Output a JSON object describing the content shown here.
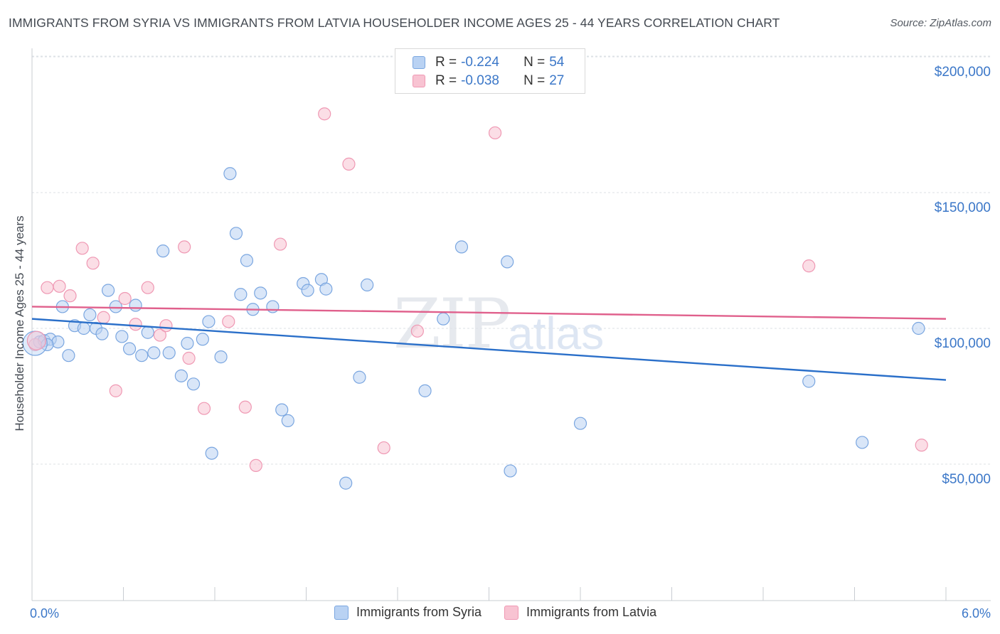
{
  "title": "IMMIGRANTS FROM SYRIA VS IMMIGRANTS FROM LATVIA HOUSEHOLDER INCOME AGES 25 - 44 YEARS CORRELATION CHART",
  "source": "Source: ZipAtlas.com",
  "watermark": {
    "zip": "ZIP",
    "atlas": "atlas"
  },
  "legend": {
    "rows": [
      {
        "r_label": "R =",
        "r_value": "-0.224",
        "n_label": "N =",
        "n_value": "54"
      },
      {
        "r_label": "R =",
        "r_value": "-0.038",
        "n_label": "N =",
        "n_value": "27"
      }
    ]
  },
  "bottom_legend": {
    "syria": "Immigrants from Syria",
    "latvia": "Immigrants from Latvia"
  },
  "colors": {
    "syria_fill": "#b9d2f3",
    "syria_stroke": "#7aa6e0",
    "syria_line": "#2a6fc9",
    "latvia_fill": "#f8c3d2",
    "latvia_stroke": "#ef98b3",
    "latvia_line": "#e0608c",
    "grid": "#dde1e6",
    "tick_label": "#3b77c8"
  },
  "chart_data": {
    "type": "scatter",
    "xlabel": "",
    "ylabel": "Householder Income Ages 25 - 44 years",
    "xlim": [
      0.0,
      6.0
    ],
    "ylim": [
      0,
      205000
    ],
    "x_tick_labels": [
      {
        "value": 0.0,
        "label": "0.0%"
      },
      {
        "value": 6.0,
        "label": "6.0%"
      }
    ],
    "y_ticks": [
      {
        "value": 50000,
        "label": "$50,000"
      },
      {
        "value": 100000,
        "label": "$100,000"
      },
      {
        "value": 150000,
        "label": "$150,000"
      },
      {
        "value": 200000,
        "label": "$200,000"
      }
    ],
    "series": [
      {
        "name": "Immigrants from Syria",
        "R": -0.224,
        "N": 54,
        "trend": {
          "x": [
            0.0,
            6.0
          ],
          "y": [
            103500,
            81000
          ]
        },
        "points": [
          {
            "x": 0.05,
            "y": 95000
          },
          {
            "x": 0.08,
            "y": 95500
          },
          {
            "x": 0.12,
            "y": 96000
          },
          {
            "x": 0.17,
            "y": 95000
          },
          {
            "x": 0.2,
            "y": 108000
          },
          {
            "x": 0.24,
            "y": 90000
          },
          {
            "x": 0.28,
            "y": 101000
          },
          {
            "x": 0.34,
            "y": 100000
          },
          {
            "x": 0.38,
            "y": 105000
          },
          {
            "x": 0.42,
            "y": 100000
          },
          {
            "x": 0.46,
            "y": 98000
          },
          {
            "x": 0.5,
            "y": 114000
          },
          {
            "x": 0.55,
            "y": 108000
          },
          {
            "x": 0.59,
            "y": 97000
          },
          {
            "x": 0.64,
            "y": 92500
          },
          {
            "x": 0.68,
            "y": 108500
          },
          {
            "x": 0.72,
            "y": 90000
          },
          {
            "x": 0.76,
            "y": 98500
          },
          {
            "x": 0.8,
            "y": 91000
          },
          {
            "x": 0.86,
            "y": 128500
          },
          {
            "x": 0.9,
            "y": 91000
          },
          {
            "x": 0.98,
            "y": 82500
          },
          {
            "x": 1.02,
            "y": 94500
          },
          {
            "x": 1.06,
            "y": 79500
          },
          {
            "x": 1.12,
            "y": 96000
          },
          {
            "x": 1.16,
            "y": 102500
          },
          {
            "x": 1.18,
            "y": 54000
          },
          {
            "x": 1.24,
            "y": 89500
          },
          {
            "x": 1.3,
            "y": 157000
          },
          {
            "x": 1.34,
            "y": 135000
          },
          {
            "x": 1.37,
            "y": 112500
          },
          {
            "x": 1.41,
            "y": 125000
          },
          {
            "x": 1.45,
            "y": 107000
          },
          {
            "x": 1.5,
            "y": 113000
          },
          {
            "x": 1.58,
            "y": 108000
          },
          {
            "x": 1.64,
            "y": 70000
          },
          {
            "x": 1.68,
            "y": 66000
          },
          {
            "x": 1.78,
            "y": 116500
          },
          {
            "x": 1.81,
            "y": 114000
          },
          {
            "x": 1.9,
            "y": 118000
          },
          {
            "x": 1.93,
            "y": 114500
          },
          {
            "x": 2.06,
            "y": 43000
          },
          {
            "x": 2.2,
            "y": 116000
          },
          {
            "x": 2.15,
            "y": 82000
          },
          {
            "x": 2.58,
            "y": 77000
          },
          {
            "x": 2.7,
            "y": 103500
          },
          {
            "x": 2.82,
            "y": 130000
          },
          {
            "x": 3.12,
            "y": 124500
          },
          {
            "x": 3.14,
            "y": 47500
          },
          {
            "x": 3.6,
            "y": 65000
          },
          {
            "x": 5.1,
            "y": 80500
          },
          {
            "x": 5.45,
            "y": 58000
          },
          {
            "x": 5.82,
            "y": 100000
          },
          {
            "x": 0.1,
            "y": 94000
          }
        ]
      },
      {
        "name": "Immigrants from Latvia",
        "R": -0.038,
        "N": 27,
        "trend": {
          "x": [
            0.0,
            6.0
          ],
          "y": [
            108000,
            103500
          ]
        },
        "points": [
          {
            "x": 0.02,
            "y": 94000
          },
          {
            "x": 0.1,
            "y": 115000
          },
          {
            "x": 0.18,
            "y": 115500
          },
          {
            "x": 0.25,
            "y": 112000
          },
          {
            "x": 0.33,
            "y": 129500
          },
          {
            "x": 0.4,
            "y": 124000
          },
          {
            "x": 0.47,
            "y": 104000
          },
          {
            "x": 0.55,
            "y": 77000
          },
          {
            "x": 0.61,
            "y": 111000
          },
          {
            "x": 0.68,
            "y": 101500
          },
          {
            "x": 0.76,
            "y": 115000
          },
          {
            "x": 0.84,
            "y": 97500
          },
          {
            "x": 0.88,
            "y": 101000
          },
          {
            "x": 1.0,
            "y": 130000
          },
          {
            "x": 1.03,
            "y": 89000
          },
          {
            "x": 1.13,
            "y": 70500
          },
          {
            "x": 1.29,
            "y": 102500
          },
          {
            "x": 1.4,
            "y": 71000
          },
          {
            "x": 1.47,
            "y": 49500
          },
          {
            "x": 1.63,
            "y": 131000
          },
          {
            "x": 1.92,
            "y": 179000
          },
          {
            "x": 2.08,
            "y": 160500
          },
          {
            "x": 2.31,
            "y": 56000
          },
          {
            "x": 2.53,
            "y": 99000
          },
          {
            "x": 3.04,
            "y": 172000
          },
          {
            "x": 5.1,
            "y": 123000
          },
          {
            "x": 5.84,
            "y": 57000
          }
        ]
      }
    ]
  }
}
